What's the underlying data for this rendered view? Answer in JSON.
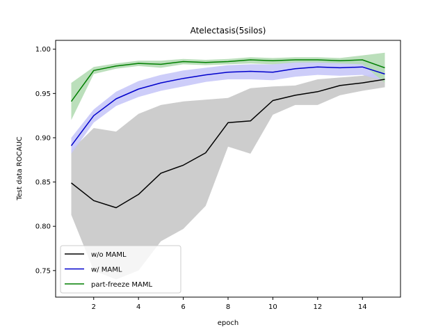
{
  "chart_data": {
    "type": "line",
    "title": "Atelectasis(5silos)",
    "xlabel": "epoch",
    "ylabel": "Test data ROCAUC",
    "xlim": [
      0.3,
      15.7
    ],
    "ylim": [
      0.72,
      1.01
    ],
    "xticks": [
      2,
      4,
      6,
      8,
      10,
      12,
      14
    ],
    "xtick_labels": [
      "2",
      "4",
      "6",
      "8",
      "10",
      "12",
      "14"
    ],
    "yticks": [
      0.75,
      0.8,
      0.85,
      0.9,
      0.95,
      1.0
    ],
    "ytick_labels": [
      "0.75",
      "0.80",
      "0.85",
      "0.90",
      "0.95",
      "1.00"
    ],
    "grid": false,
    "legend_position": "lower-left",
    "x": [
      1,
      2,
      3,
      4,
      5,
      6,
      7,
      8,
      9,
      10,
      11,
      12,
      13,
      14,
      15
    ],
    "series": [
      {
        "name": "w/o MAML",
        "color": "#000000",
        "band_color": "#c8c8c8",
        "values": [
          0.849,
          0.829,
          0.821,
          0.836,
          0.86,
          0.869,
          0.883,
          0.917,
          0.919,
          0.942,
          0.948,
          0.952,
          0.959,
          0.962,
          0.966
        ],
        "lower": [
          0.813,
          0.75,
          0.74,
          0.75,
          0.783,
          0.797,
          0.823,
          0.89,
          0.882,
          0.926,
          0.937,
          0.937,
          0.948,
          0.953,
          0.957
        ],
        "upper": [
          0.886,
          0.911,
          0.907,
          0.927,
          0.937,
          0.941,
          0.943,
          0.945,
          0.956,
          0.958,
          0.959,
          0.966,
          0.968,
          0.97,
          0.974
        ]
      },
      {
        "name": "w/ MAML",
        "color": "#0000cc",
        "band_color": "#c8c8f8",
        "values": [
          0.891,
          0.925,
          0.944,
          0.955,
          0.962,
          0.967,
          0.971,
          0.974,
          0.975,
          0.974,
          0.978,
          0.98,
          0.979,
          0.98,
          0.972
        ],
        "lower": [
          0.882,
          0.917,
          0.936,
          0.946,
          0.953,
          0.958,
          0.963,
          0.966,
          0.966,
          0.965,
          0.969,
          0.971,
          0.97,
          0.971,
          0.964
        ],
        "upper": [
          0.9,
          0.932,
          0.952,
          0.964,
          0.971,
          0.976,
          0.979,
          0.982,
          0.983,
          0.983,
          0.986,
          0.988,
          0.987,
          0.988,
          0.981
        ]
      },
      {
        "name": "part-freeze MAML",
        "color": "#007f00",
        "band_color": "#b4dcb4",
        "values": [
          0.941,
          0.976,
          0.981,
          0.984,
          0.983,
          0.986,
          0.985,
          0.986,
          0.988,
          0.987,
          0.988,
          0.988,
          0.987,
          0.988,
          0.979
        ],
        "lower": [
          0.92,
          0.972,
          0.978,
          0.981,
          0.979,
          0.983,
          0.982,
          0.983,
          0.984,
          0.983,
          0.985,
          0.985,
          0.984,
          0.983,
          0.962
        ],
        "upper": [
          0.962,
          0.98,
          0.984,
          0.987,
          0.987,
          0.989,
          0.988,
          0.989,
          0.991,
          0.99,
          0.991,
          0.991,
          0.99,
          0.993,
          0.996
        ]
      }
    ]
  }
}
